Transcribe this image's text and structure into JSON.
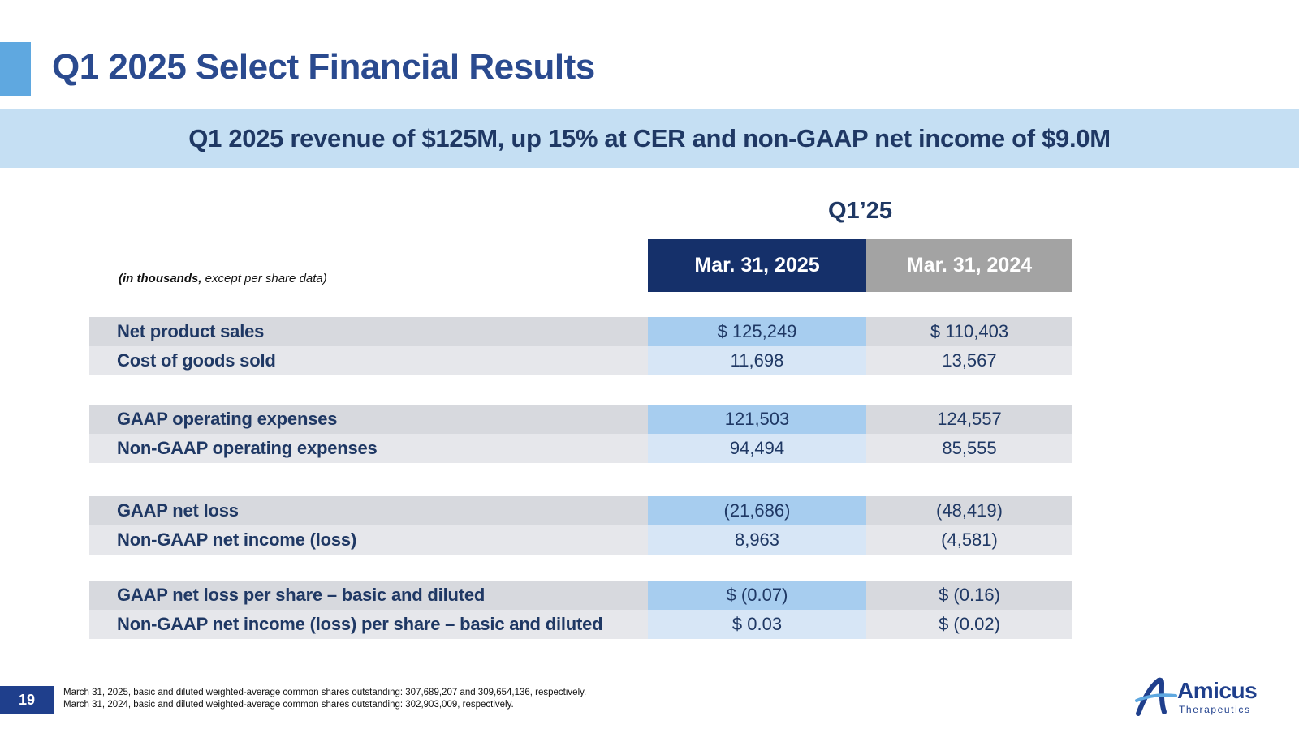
{
  "slide": {
    "title": "Q1 2025 Select Financial Results",
    "subtitle": "Q1 2025 revenue of $125M, up 15% at CER and non-GAAP net income of $9.0M",
    "page_number": "19"
  },
  "table": {
    "quarter_label": "Q1’25",
    "units_note_bold": "(in thousands,",
    "units_note_rest": " except per share data)",
    "columns": [
      "Mar. 31, 2025",
      "Mar. 31, 2024"
    ],
    "rows": [
      {
        "label": "Net product sales",
        "current": "$ 125,249",
        "prior": "$ 110,403"
      },
      {
        "label": "Cost of goods sold",
        "current": "11,698",
        "prior": "13,567"
      },
      {
        "label": "GAAP operating expenses",
        "current": "121,503",
        "prior": "124,557"
      },
      {
        "label": "Non-GAAP operating expenses",
        "current": "94,494",
        "prior": "85,555"
      },
      {
        "label": "GAAP net loss",
        "current": "(21,686)",
        "prior": "(48,419)"
      },
      {
        "label": "Non-GAAP net income (loss)",
        "current": "8,963",
        "prior": "(4,581)"
      },
      {
        "label": "GAAP net loss per share – basic and diluted",
        "current": "$ (0.07)",
        "prior": "$ (0.16)"
      },
      {
        "label": "Non-GAAP net income (loss) per share – basic and diluted",
        "current": "$ 0.03",
        "prior": "$ (0.02)"
      }
    ]
  },
  "footnotes": [
    "March 31, 2025, basic and diluted weighted-average common shares outstanding: 307,689,207 and 309,654,136, respectively.",
    "March 31, 2024, basic and diluted weighted-average common shares outstanding: 302,903,009, respectively."
  ],
  "logo": {
    "name": "Amicus",
    "tagline": "Therapeutics"
  },
  "colors": {
    "title_blue": "#2a4a8f",
    "header_navy": "#15306a",
    "header_gray": "#a3a3a3",
    "accent_light_blue": "#5fa8e0",
    "band_blue": "#c5dff3"
  }
}
